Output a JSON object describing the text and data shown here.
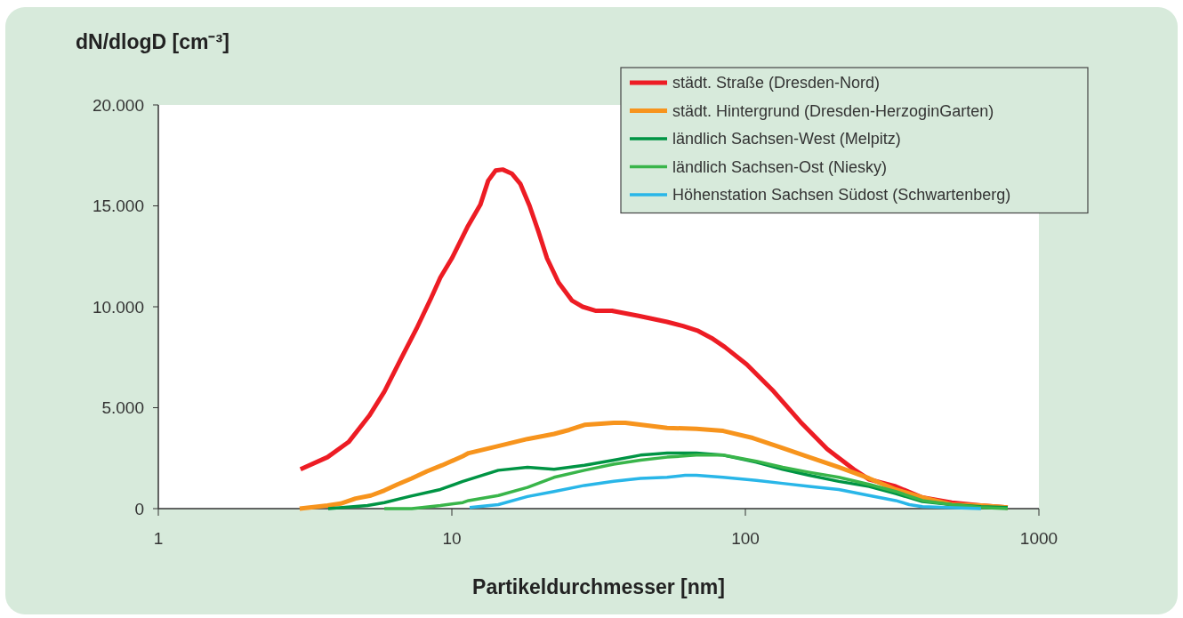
{
  "chart_data": {
    "type": "line",
    "ylabel": "dN/dlogD [cm⁻³]",
    "xlabel": "Partikeldurchmesser [nm]",
    "log": "x",
    "xlim": [
      1,
      1000
    ],
    "xticks": [
      1,
      10,
      100,
      1000
    ],
    "ylim": [
      0,
      20000
    ],
    "yticks": [
      {
        "value": 0,
        "label": "0"
      },
      {
        "value": 5000,
        "label": "5.000"
      },
      {
        "value": 10000,
        "label": "10.000"
      },
      {
        "value": 15000,
        "label": "15.000"
      },
      {
        "value": 20000,
        "label": "20.000"
      }
    ],
    "grid": false,
    "legend": "top right",
    "marker": "none",
    "line_style": "solid",
    "series": [
      {
        "name": "städt. Straße (Dresden-Nord)",
        "color": "#ed1c24",
        "x": [
          3.05,
          3.77,
          4.45,
          5.23,
          5.89,
          6.67,
          7.57,
          8.51,
          9.14,
          10,
          11.3,
          12.5,
          13.3,
          14.1,
          14.9,
          16,
          17.1,
          18.4,
          19.7,
          21.1,
          23.1,
          25.7,
          27.9,
          31,
          35.1,
          43.3,
          54.1,
          61.3,
          69.1,
          76.7,
          85.2,
          101,
          125,
          154,
          190,
          234,
          264,
          325,
          401,
          505,
          635,
          783
        ],
        "values": [
          1950,
          2550,
          3300,
          4600,
          5800,
          7350,
          8900,
          10450,
          11450,
          12400,
          13950,
          15050,
          16250,
          16750,
          16800,
          16600,
          16100,
          15000,
          13750,
          12400,
          11200,
          10300,
          10000,
          9800,
          9800,
          9550,
          9250,
          9050,
          8800,
          8450,
          8000,
          7150,
          5800,
          4300,
          2950,
          1950,
          1450,
          1100,
          550,
          300,
          150,
          50
        ]
      },
      {
        "name": "städt. Hintergrund (Dresden-HerzoginGarten)",
        "color": "#f7941d",
        "x": [
          3.03,
          3.77,
          4.18,
          4.7,
          5.3,
          5.89,
          6.53,
          7.3,
          8.23,
          9.27,
          10.9,
          11.4,
          14.4,
          18.1,
          22.3,
          25.1,
          28.3,
          35.6,
          39,
          54.1,
          68.1,
          84,
          106,
          134,
          165,
          208,
          264,
          325,
          401,
          505,
          635,
          783
        ],
        "values": [
          0,
          150,
          250,
          500,
          650,
          900,
          1200,
          1500,
          1850,
          2150,
          2600,
          2750,
          3100,
          3450,
          3700,
          3900,
          4150,
          4250,
          4250,
          4000,
          3950,
          3850,
          3500,
          3000,
          2550,
          2050,
          1500,
          950,
          550,
          200,
          150,
          50
        ]
      },
      {
        "name": "ländlich Sachsen-West (Melpitz)",
        "color": "#009444",
        "x": [
          3.79,
          5.16,
          5.89,
          7.15,
          9.14,
          10.9,
          14.4,
          18.1,
          22.3,
          28.3,
          35.6,
          43.9,
          54.1,
          68.1,
          84,
          109,
          134,
          165,
          208,
          264,
          325,
          401,
          505,
          635,
          783
        ],
        "values": [
          0,
          150,
          300,
          600,
          950,
          1350,
          1900,
          2050,
          1950,
          2150,
          2400,
          2650,
          2750,
          2750,
          2650,
          2300,
          1950,
          1650,
          1350,
          1100,
          750,
          350,
          200,
          100,
          50
        ]
      },
      {
        "name": "ländlich Sachsen-Ost (Niesky)",
        "color": "#39b54a",
        "x": [
          5.89,
          7.3,
          9.14,
          10.9,
          11.4,
          14.4,
          18.1,
          22.3,
          28.3,
          35.6,
          43.9,
          54.1,
          68.1,
          84,
          109,
          134,
          165,
          208,
          264,
          325,
          401,
          505,
          635,
          783
        ],
        "values": [
          0,
          0,
          150,
          300,
          400,
          650,
          1050,
          1550,
          1900,
          2200,
          2400,
          2550,
          2650,
          2650,
          2350,
          2050,
          1800,
          1550,
          1200,
          850,
          400,
          200,
          50,
          0
        ]
      },
      {
        "name": "Höhenstation Sachsen Südost (Schwartenberg)",
        "color": "#29b6e8",
        "x": [
          11.5,
          14.4,
          18.1,
          22.3,
          28.3,
          35.6,
          43.9,
          54.1,
          62.3,
          68.1,
          84,
          109,
          134,
          165,
          208,
          264,
          325,
          362,
          401,
          635
        ],
        "values": [
          50,
          200,
          600,
          850,
          1150,
          1350,
          1500,
          1550,
          1650,
          1650,
          1550,
          1400,
          1250,
          1100,
          950,
          650,
          400,
          200,
          100,
          0
        ]
      }
    ]
  }
}
